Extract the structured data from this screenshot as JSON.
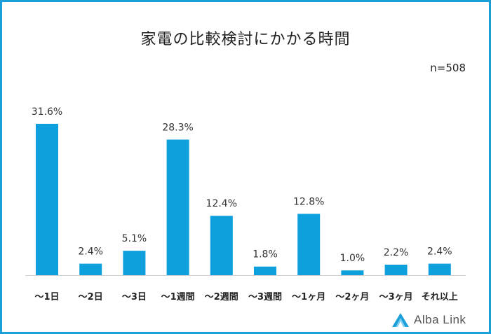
{
  "chart_data": {
    "type": "bar",
    "title": "家電の比較検討にかかる時間",
    "sample_size_label": "n=508",
    "categories": [
      "～1日",
      "～2日",
      "～3日",
      "～1週間",
      "～2週間",
      "～3週間",
      "～1ヶ月",
      "～2ヶ月",
      "～3ヶ月",
      "それ以上"
    ],
    "values": [
      31.6,
      2.4,
      5.1,
      28.3,
      12.4,
      1.8,
      12.8,
      1.0,
      2.2,
      2.4
    ],
    "value_labels": [
      "31.6%",
      "2.4%",
      "5.1%",
      "28.3%",
      "12.4%",
      "1.8%",
      "12.8%",
      "1.0%",
      "2.2%",
      "2.4%"
    ],
    "ylim": [
      0,
      35
    ],
    "bar_color": "#0ea0dc",
    "grid": false
  },
  "branding": {
    "logo_text": "Alba Link",
    "logo_icon": "alba-link-triangle-icon",
    "accent_color": "#1a9fd9"
  }
}
